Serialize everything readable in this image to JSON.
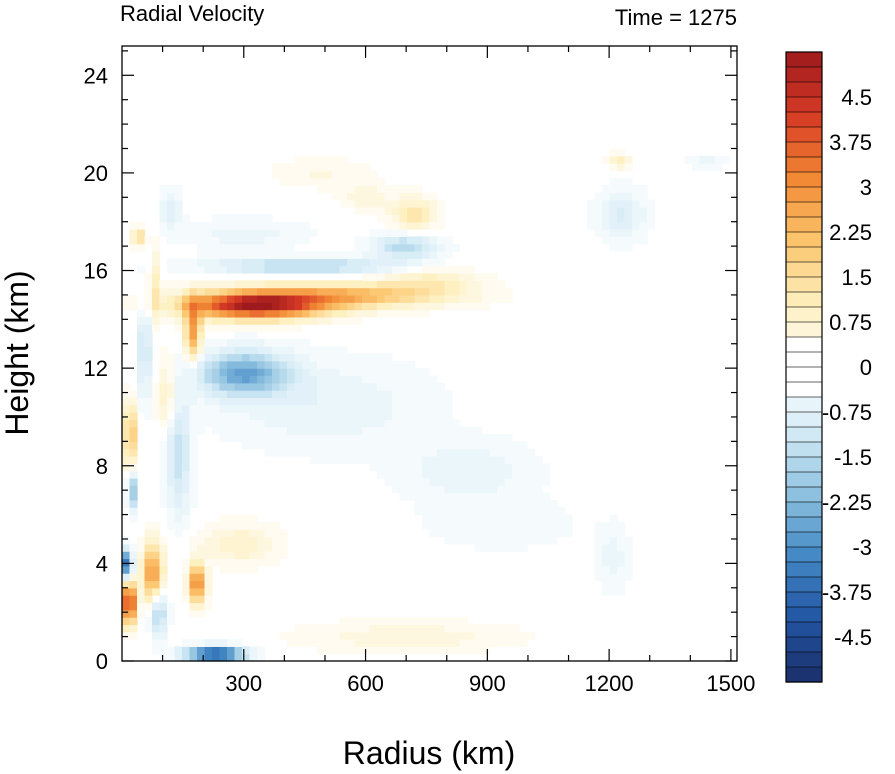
{
  "chart_data": {
    "type": "heatmap",
    "title_left": "Radial Velocity",
    "title_right": "Time = 1275",
    "xlabel": "Radius (km)",
    "ylabel": "Height (km)",
    "xlim": [
      0,
      1515
    ],
    "ylim": [
      0,
      25.2
    ],
    "xticks": [
      300,
      600,
      900,
      1200,
      1500
    ],
    "xtick_labels": [
      "300",
      "600",
      "900",
      "1200",
      "1500"
    ],
    "yticks": [
      0,
      4,
      8,
      12,
      16,
      20,
      24
    ],
    "ytick_labels": [
      "0",
      "4",
      "8",
      "12",
      "16",
      "20",
      "24"
    ],
    "colorbar": {
      "min": -5.25,
      "max": 5.25,
      "step": 0.25,
      "tick_values": [
        4.5,
        3.75,
        3,
        2.25,
        1.5,
        0.75,
        0,
        -0.75,
        -1.5,
        -2.25,
        -3,
        -3.75,
        -4.5
      ],
      "tick_labels": [
        "4.5",
        "3.75",
        "3",
        "2.25",
        "1.5",
        "0.75",
        "0",
        "-0.75",
        "-1.5",
        "-2.25",
        "-3",
        "-3.75",
        "-4.5"
      ],
      "colors": [
        "#1a2e6a",
        "#2255a3",
        "#4389c5",
        "#8fc2e0",
        "#d6ecf6",
        "#ffffff",
        "#fdefbe",
        "#fbc56c",
        "#f28834",
        "#d63a25",
        "#9e1a1d"
      ]
    },
    "features": [
      {
        "name": "upper-outflow-core",
        "r_center": 330,
        "z_center": 14.6,
        "r_spread": 170,
        "z_spread": 0.55,
        "value": 5.0
      },
      {
        "name": "upper-outflow-tail",
        "r_center": 560,
        "z_center": 15.0,
        "r_spread": 240,
        "z_spread": 0.5,
        "value": 2.2
      },
      {
        "name": "upper-outflow-far",
        "r_center": 760,
        "z_center": 15.6,
        "r_spread": 110,
        "z_spread": 0.5,
        "value": 0.9
      },
      {
        "name": "eyewall-outflow-column",
        "r_center": 175,
        "z_center": 13.5,
        "r_spread": 20,
        "z_spread": 1.2,
        "value": 2.8
      },
      {
        "name": "inflow-above-outflow",
        "r_center": 450,
        "z_center": 16.2,
        "r_spread": 230,
        "z_spread": 0.35,
        "value": -1.6
      },
      {
        "name": "inflow-above-outflow-outer",
        "r_center": 700,
        "z_center": 17.0,
        "r_spread": 80,
        "z_spread": 0.5,
        "value": -1.6
      },
      {
        "name": "upper-outer-warm",
        "r_center": 720,
        "z_center": 18.3,
        "r_spread": 55,
        "z_spread": 0.7,
        "value": 1.3
      },
      {
        "name": "upper-outer-warm-2",
        "r_center": 490,
        "z_center": 20.0,
        "r_spread": 120,
        "z_spread": 0.6,
        "value": 0.4
      },
      {
        "name": "midlevel-inflow",
        "r_center": 300,
        "z_center": 11.8,
        "r_spread": 110,
        "z_spread": 0.9,
        "value": -2.6
      },
      {
        "name": "midlevel-inflow-broad",
        "r_center": 500,
        "z_center": 10.5,
        "r_spread": 250,
        "z_spread": 1.8,
        "value": -0.6
      },
      {
        "name": "midlevel-inflow-outer",
        "r_center": 850,
        "z_center": 7.8,
        "r_spread": 160,
        "z_spread": 1.2,
        "value": -0.6
      },
      {
        "name": "outer-inflow-1230",
        "r_center": 1230,
        "z_center": 18.3,
        "r_spread": 60,
        "z_spread": 1.0,
        "value": -0.9
      },
      {
        "name": "outer-inflow-1440",
        "r_center": 1440,
        "z_center": 20.5,
        "r_spread": 50,
        "z_spread": 0.3,
        "value": -0.5
      },
      {
        "name": "outer-warm-1225",
        "r_center": 1225,
        "z_center": 20.5,
        "r_spread": 25,
        "z_spread": 0.3,
        "value": 1.0
      },
      {
        "name": "outer-inflow-1200-low",
        "r_center": 1210,
        "z_center": 4.2,
        "r_spread": 40,
        "z_spread": 1.3,
        "value": -0.5
      },
      {
        "name": "outer-inflow-920",
        "r_center": 930,
        "z_center": 5.6,
        "r_spread": 180,
        "z_spread": 1.0,
        "value": -0.35
      },
      {
        "name": "core-strong-outflow-low",
        "r_center": 18,
        "z_center": 2.4,
        "r_spread": 14,
        "z_spread": 0.9,
        "value": 5.2
      },
      {
        "name": "core-strong-inflow-low",
        "r_center": 15,
        "z_center": 4.0,
        "r_spread": 10,
        "z_spread": 0.6,
        "value": -5.0
      },
      {
        "name": "core-outflow-mid",
        "r_center": 20,
        "z_center": 9.3,
        "r_spread": 14,
        "z_spread": 1.3,
        "value": 2.5
      },
      {
        "name": "core-inflow-mid",
        "r_center": 25,
        "z_center": 7.0,
        "r_spread": 12,
        "z_spread": 0.8,
        "value": -2.0
      },
      {
        "name": "core-outflow-high",
        "r_center": 40,
        "z_center": 17.4,
        "r_spread": 15,
        "z_spread": 0.4,
        "value": 1.6
      },
      {
        "name": "lower-outflow-band",
        "r_center": 75,
        "z_center": 3.6,
        "r_spread": 25,
        "z_spread": 1.2,
        "value": 3.0
      },
      {
        "name": "lower-inflow-band",
        "r_center": 90,
        "z_center": 2.0,
        "r_spread": 20,
        "z_spread": 1.0,
        "value": -1.8
      },
      {
        "name": "eyewall-lower-outflow",
        "r_center": 185,
        "z_center": 3.2,
        "r_spread": 20,
        "z_spread": 0.8,
        "value": 3.5
      },
      {
        "name": "boundary-inflow",
        "r_center": 230,
        "z_center": 0.3,
        "r_spread": 70,
        "z_spread": 0.3,
        "value": -4.6
      },
      {
        "name": "boundary-outflow-far",
        "r_center": 700,
        "z_center": 1.0,
        "r_spread": 250,
        "z_spread": 0.6,
        "value": 0.6
      },
      {
        "name": "lower-outflow-300",
        "r_center": 290,
        "z_center": 4.8,
        "r_spread": 90,
        "z_spread": 0.8,
        "value": 0.9
      },
      {
        "name": "inner-midlevel-inflow",
        "r_center": 140,
        "z_center": 8.5,
        "r_spread": 30,
        "z_spread": 2.5,
        "value": -1.3
      },
      {
        "name": "inner-midlevel-outflow",
        "r_center": 110,
        "z_center": 11.0,
        "r_spread": 25,
        "z_spread": 1.5,
        "value": 1.0
      },
      {
        "name": "inner-inflow-column",
        "r_center": 55,
        "z_center": 12.8,
        "r_spread": 18,
        "z_spread": 2.0,
        "value": -1.2
      },
      {
        "name": "inner-outflow-column",
        "r_center": 80,
        "z_center": 15.5,
        "r_spread": 14,
        "z_spread": 1.5,
        "value": 1.0
      },
      {
        "name": "inner-inflow-upper",
        "r_center": 120,
        "z_center": 18.5,
        "r_spread": 25,
        "z_spread": 0.8,
        "value": -0.8
      },
      {
        "name": "outer-warm-600-upper",
        "r_center": 600,
        "z_center": 19.0,
        "r_spread": 60,
        "z_spread": 0.5,
        "value": 0.6
      },
      {
        "name": "upper-inflow-mid",
        "r_center": 300,
        "z_center": 17.5,
        "r_spread": 150,
        "z_spread": 0.6,
        "value": -0.5
      }
    ]
  }
}
